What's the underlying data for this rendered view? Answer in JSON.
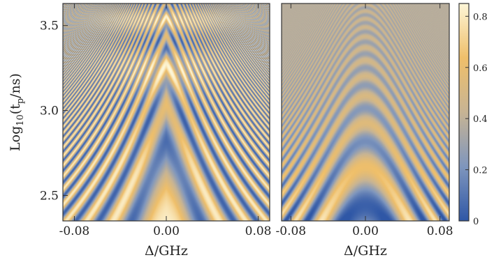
{
  "chart_data": [
    {
      "type": "heatmap",
      "panel": "left",
      "xlabel": "Δ/GHz",
      "ylabel": "Log",
      "ylabel_sub": "10",
      "ylabel_rest_1": "(t",
      "ylabel_rest_sub": "p",
      "ylabel_rest_2": "/ns)",
      "xlim": [
        -0.09,
        0.09
      ],
      "ylim": [
        2.35,
        3.63
      ],
      "xticks": [
        -0.08,
        0.0,
        0.08
      ],
      "xtick_labels": [
        "-0.08",
        "0.00",
        "0.08"
      ],
      "yticks": [
        2.5,
        3.0,
        3.5
      ],
      "ytick_labels": [
        "2.5",
        "3.0",
        "3.5"
      ],
      "colormap": [
        "#3a5aa3",
        "#8a9ab8",
        "#c8b898",
        "#f0c070",
        "#fdf3cc"
      ]
    },
    {
      "type": "heatmap",
      "panel": "right",
      "xlabel": "Δ/GHz",
      "xlim": [
        -0.09,
        0.09
      ],
      "ylim": [
        2.35,
        3.63
      ],
      "xticks": [
        -0.08,
        0.0,
        0.08
      ],
      "xtick_labels": [
        "-0.08",
        "0.00",
        "0.08"
      ],
      "colorbar": {
        "range": [
          0,
          0.85
        ],
        "ticks": [
          0,
          0.2,
          0.4,
          0.6,
          0.8
        ],
        "tick_labels": [
          "0",
          "0.2",
          "0.4",
          "0.6",
          "0.8"
        ]
      }
    }
  ]
}
